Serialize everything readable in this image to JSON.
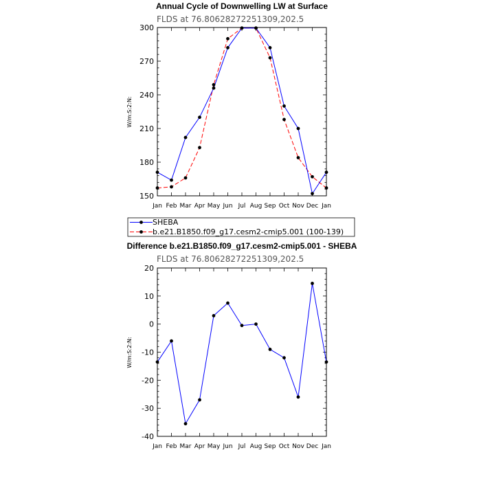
{
  "chart_data": [
    {
      "type": "line",
      "title": "Annual Cycle of Downwelling LW at Surface",
      "subtitle": "FLDS at 76.80628272251309,202.5",
      "xlabel": "",
      "ylabel": "W/m:S:2:N:",
      "categories": [
        "Jan",
        "Feb",
        "Mar",
        "Apr",
        "May",
        "Jun",
        "Jul",
        "Aug",
        "Sep",
        "Oct",
        "Nov",
        "Dec",
        "Jan"
      ],
      "ylim": [
        150,
        300
      ],
      "yticks": [
        150,
        180,
        210,
        240,
        270,
        300
      ],
      "series": [
        {
          "name": "SHEBA",
          "color": "#0000ff",
          "dash": "solid",
          "values": [
            171,
            164,
            202,
            220,
            246,
            282,
            299.5,
            299.5,
            282,
            230,
            210,
            152,
            171
          ]
        },
        {
          "name": "b.e21.B1850.f09_g17.cesm2-cmip5.001 (100-139)",
          "color": "#ff0000",
          "dash": "dashed",
          "values": [
            157,
            158,
            166,
            193,
            249,
            290,
            299.5,
            299.5,
            273,
            218,
            184,
            167,
            157
          ]
        }
      ],
      "legend": "below"
    },
    {
      "type": "line",
      "title": "Difference b.e21.B1850.f09_g17.cesm2-cmip5.001 - SHEBA",
      "subtitle": "FLDS at 76.80628272251309,202.5",
      "xlabel": "",
      "ylabel": "W/m:S:2:N:",
      "categories": [
        "Jan",
        "Feb",
        "Mar",
        "Apr",
        "May",
        "Jun",
        "Jul",
        "Aug",
        "Sep",
        "Oct",
        "Nov",
        "Dec",
        "Jan"
      ],
      "ylim": [
        -40,
        20
      ],
      "yticks": [
        -40,
        -30,
        -20,
        -10,
        0,
        10,
        20
      ],
      "series": [
        {
          "color": "#0000ff",
          "dash": "solid",
          "values": [
            -13.5,
            -6,
            -35.5,
            -27,
            3,
            7.5,
            -0.5,
            0,
            -9,
            -12,
            -26,
            14.5,
            -13.5
          ]
        }
      ]
    }
  ]
}
